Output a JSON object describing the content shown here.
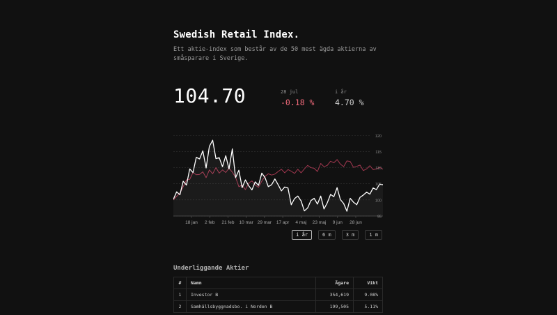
{
  "header": {
    "title": "Swedish Retail Index.",
    "subtitle": "Ett aktie-index som består av de 50 mest ägda aktierna av småsparare i Sverige."
  },
  "summary": {
    "value": "104.70",
    "day": {
      "label": "28 jul",
      "change": "-0.18 %"
    },
    "year": {
      "label": "i år",
      "change": "4.70 %"
    }
  },
  "colors": {
    "background": "#111111",
    "index_line": "#ffffff",
    "comparison_line": "#a33850",
    "negative": "#f06a7a"
  },
  "chart_data": {
    "type": "line",
    "x_labels": [
      "18 jan",
      "2 feb",
      "21 feb",
      "10 mar",
      "29 mar",
      "17 apr",
      "4 maj",
      "23 maj",
      "9 jun",
      "28 jun"
    ],
    "y_ticks": [
      95,
      100,
      105,
      110,
      115,
      120
    ],
    "ylim": [
      95,
      122
    ],
    "grid": true,
    "series": [
      {
        "name": "",
        "color": "#ffffff",
        "values": [
          100.2,
          102.5,
          101.6,
          105.8,
          104.6,
          109.6,
          108.5,
          113.2,
          112.7,
          115.2,
          109.9,
          116.6,
          118.5,
          112.8,
          113.1,
          110.3,
          113.7,
          109.6,
          115.8,
          106.9,
          109.2,
          103.8,
          106.2,
          104.4,
          103.1,
          105.6,
          104.5,
          108.3,
          106.9,
          104.1,
          104.7,
          106.5,
          104.7,
          102.8,
          104.0,
          103.7,
          98.5,
          100.4,
          101.2,
          99.7,
          96.6,
          97.5,
          99.8,
          100.5,
          98.7,
          101.2,
          97.2,
          99.1,
          101.7,
          101.0,
          103.8,
          100.1,
          98.9,
          96.5,
          100.5,
          99.3,
          98.5,
          100.8,
          101.5,
          102.4,
          101.8,
          103.7,
          103.2,
          104.9,
          104.7
        ]
      },
      {
        "name": "",
        "color": "#a33850",
        "values": [
          100.0,
          101.1,
          102.1,
          104.1,
          106.2,
          106.4,
          108.5,
          107.8,
          107.9,
          108.7,
          106.9,
          109.3,
          108.1,
          110.0,
          108.3,
          109.3,
          108.5,
          109.9,
          108.6,
          107.0,
          104.1,
          104.6,
          103.2,
          105.2,
          105.9,
          104.6,
          103.9,
          105.8,
          107.3,
          108.1,
          107.7,
          108.0,
          108.8,
          109.5,
          108.4,
          109.4,
          108.9,
          108.2,
          109.5,
          108.4,
          109.6,
          110.7,
          110.0,
          109.8,
          108.8,
          111.3,
          110.3,
          110.7,
          112.0,
          111.5,
          112.5,
          111.1,
          110.3,
          112.1,
          111.9,
          110.1,
          110.4,
          110.8,
          109.1,
          109.6,
          110.6,
          109.4,
          109.6,
          110.1,
          109.5
        ]
      }
    ]
  },
  "periods": [
    {
      "label": "i år",
      "active": true
    },
    {
      "label": "6 m",
      "active": false
    },
    {
      "label": "3 m",
      "active": false
    },
    {
      "label": "1 m",
      "active": false
    }
  ],
  "holdings": {
    "title": "Underliggande Aktier",
    "columns": {
      "index": "#",
      "name": "Namn",
      "owners": "Ägare",
      "weight": "Vikt"
    },
    "rows": [
      {
        "index": "1",
        "name": "Investor B",
        "owners": "354,619",
        "weight": "9.08%"
      },
      {
        "index": "2",
        "name": "Samhällsbyggnadsbo. i Norden B",
        "owners": "199,505",
        "weight": "5.11%"
      }
    ]
  }
}
